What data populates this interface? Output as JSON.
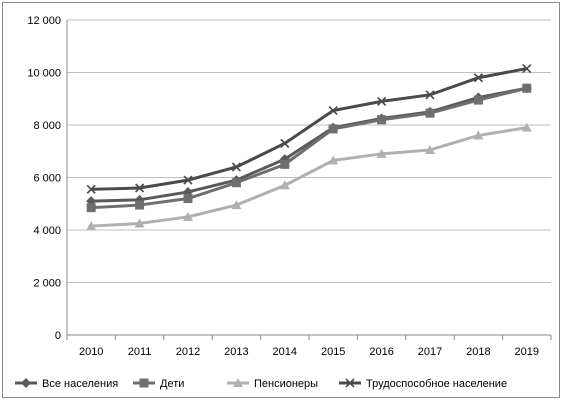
{
  "chart_data": {
    "type": "line",
    "title": "",
    "xlabel": "",
    "ylabel": "",
    "categories": [
      "2010",
      "2011",
      "2012",
      "2013",
      "2014",
      "2015",
      "2016",
      "2017",
      "2018",
      "2019"
    ],
    "ylim": [
      0,
      12000
    ],
    "yticks": [
      0,
      2000,
      4000,
      6000,
      8000,
      10000,
      12000
    ],
    "ytick_labels": [
      "0",
      "2 000",
      "4 000",
      "6 000",
      "8 000",
      "10 000",
      "12 000"
    ],
    "grid": "horizontal",
    "legend_position": "bottom",
    "series": [
      {
        "name": "Все населения",
        "marker": "diamond",
        "color": "#5a5a5a",
        "values": [
          5100,
          5150,
          5450,
          5900,
          6700,
          7900,
          8250,
          8500,
          9050,
          9400
        ]
      },
      {
        "name": "Дети",
        "marker": "square",
        "color": "#6e6e6e",
        "values": [
          4850,
          4950,
          5200,
          5800,
          6500,
          7850,
          8200,
          8450,
          8950,
          9400
        ]
      },
      {
        "name": "Пенсионеры",
        "marker": "triangle",
        "color": "#b0b0b0",
        "values": [
          4150,
          4250,
          4500,
          4950,
          5700,
          6650,
          6900,
          7050,
          7600,
          7900
        ]
      },
      {
        "name": "Трудоспособное население",
        "marker": "cross",
        "color": "#4a4a4a",
        "values": [
          5550,
          5600,
          5900,
          6400,
          7300,
          8550,
          8900,
          9150,
          9800,
          10150
        ]
      }
    ]
  }
}
